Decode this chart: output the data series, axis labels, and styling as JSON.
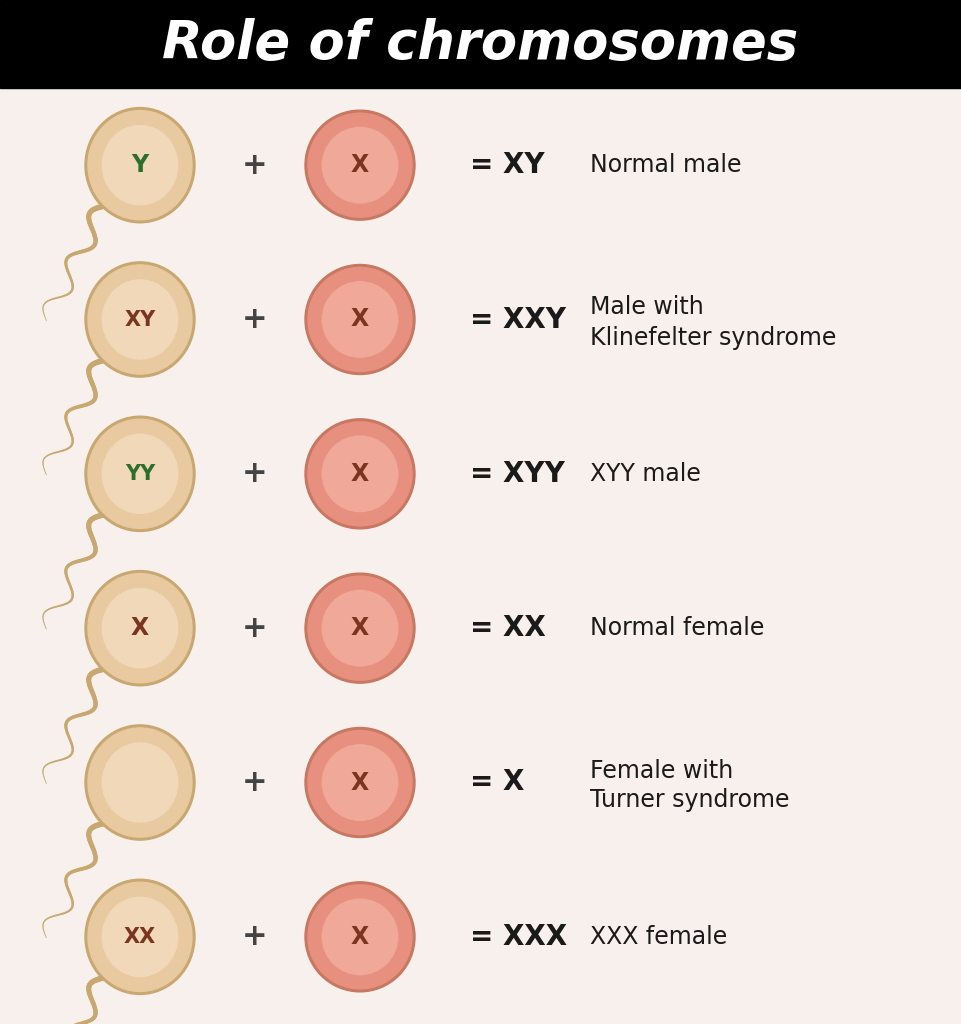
{
  "title": "Role of chromosomes",
  "title_bg": "#000000",
  "title_color": "#ffffff",
  "bg_color": "#f7f0ed",
  "rows": [
    {
      "sperm_label": "Y",
      "sperm_label_color": "#2d6e2d",
      "egg_label": "X",
      "egg_label_color": "#7a3520",
      "result": "= XY",
      "description": "Normal male",
      "description2": "",
      "sperm_empty": false
    },
    {
      "sperm_label": "XY",
      "sperm_label_color": "#7a3520",
      "egg_label": "X",
      "egg_label_color": "#7a3520",
      "result": "= XXY",
      "description": "Male with",
      "description2": "Klinefelter syndrome",
      "sperm_empty": false
    },
    {
      "sperm_label": "YY",
      "sperm_label_color": "#2d6e2d",
      "egg_label": "X",
      "egg_label_color": "#7a3520",
      "result": "= XYY",
      "description": "XYY male",
      "description2": "",
      "sperm_empty": false
    },
    {
      "sperm_label": "X",
      "sperm_label_color": "#7a3520",
      "egg_label": "X",
      "egg_label_color": "#7a3520",
      "result": "= XX",
      "description": "Normal female",
      "description2": "",
      "sperm_empty": false
    },
    {
      "sperm_label": "",
      "sperm_label_color": "#7a3520",
      "egg_label": "X",
      "egg_label_color": "#7a3520",
      "result": "= X",
      "description": "Female with",
      "description2": "Turner syndrome",
      "sperm_empty": true
    },
    {
      "sperm_label": "XX",
      "sperm_label_color": "#7a3520",
      "egg_label": "X",
      "egg_label_color": "#7a3520",
      "result": "= XXX",
      "description": "XXX female",
      "description2": "",
      "sperm_empty": false
    }
  ],
  "sperm_outer_color": "#e8c9a0",
  "sperm_inner_color": "#f0d8b8",
  "sperm_tail_color": "#c8a870",
  "egg_outer_color": "#e89080",
  "egg_inner_color": "#f0a898",
  "result_color": "#1a1a1a",
  "desc_color": "#1a1a1a",
  "plus_color": "#444444",
  "title_fontsize": 38,
  "label_fontsize": 17,
  "result_fontsize": 20,
  "desc_fontsize": 17
}
